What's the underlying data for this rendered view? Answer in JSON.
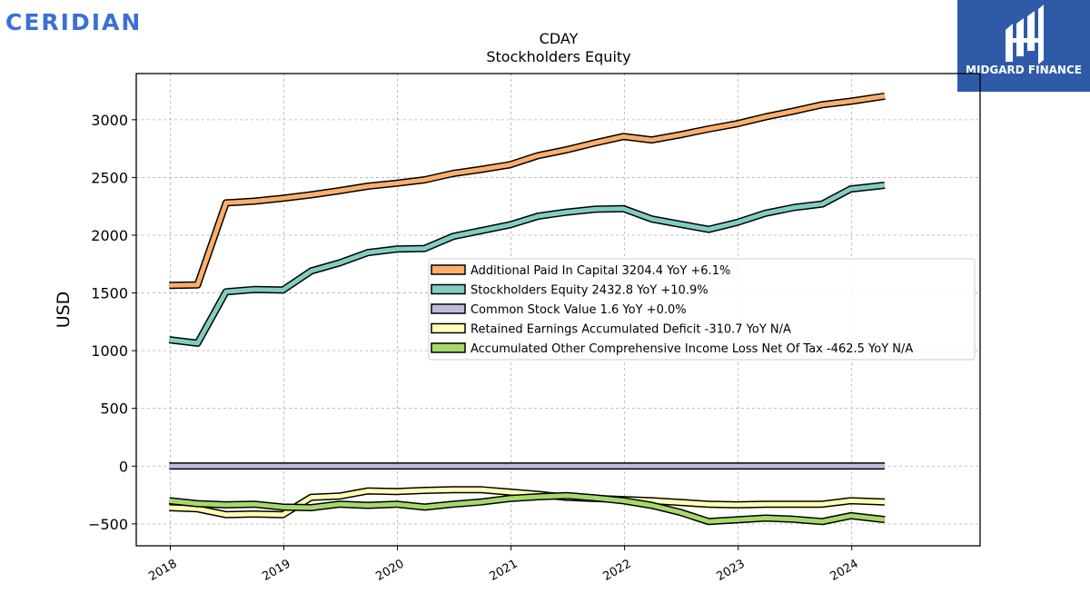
{
  "branding": {
    "left_logo_text": "CERIDIAN",
    "left_logo_color": "#3a6fd8",
    "right_logo_text": "MIDGARD FINANCE",
    "right_logo_bg": "#2f5aa8"
  },
  "chart_data": {
    "type": "line",
    "title": "CDAY",
    "subtitle": "Stockholders  Equity",
    "ylabel": "USD",
    "xlabel": "",
    "ylim": [
      -690,
      3400
    ],
    "yticks": [
      -500,
      0,
      500,
      1000,
      1500,
      2000,
      2500,
      3000
    ],
    "ytick_labels": [
      "−500",
      "0",
      "500",
      "1000",
      "1500",
      "2000",
      "2500",
      "3000"
    ],
    "xlim": [
      2017.7,
      2025.13
    ],
    "xticks": [
      2018,
      2019,
      2020,
      2021,
      2022,
      2023,
      2024
    ],
    "xtick_labels": [
      "2018",
      "2019",
      "2020",
      "2021",
      "2022",
      "2023",
      "2024"
    ],
    "grid": true,
    "legend_position": "center-right",
    "x": [
      2017.99,
      2018.24,
      2018.49,
      2018.74,
      2018.99,
      2019.24,
      2019.49,
      2019.74,
      2019.99,
      2020.24,
      2020.49,
      2020.74,
      2020.99,
      2021.24,
      2021.49,
      2021.74,
      2021.99,
      2022.24,
      2022.49,
      2022.74,
      2022.99,
      2023.24,
      2023.49,
      2023.74,
      2023.99,
      2024.29
    ],
    "series": [
      {
        "name": "Additional Paid In Capital  3204.4 YoY +6.1%",
        "color": "#fdae6b",
        "values": [
          1565,
          1570,
          2280,
          2295,
          2320,
          2350,
          2385,
          2425,
          2450,
          2480,
          2535,
          2570,
          2610,
          2690,
          2740,
          2800,
          2855,
          2825,
          2870,
          2920,
          2965,
          3025,
          3075,
          3130,
          3160,
          3204.4
        ]
      },
      {
        "name": "Stockholders Equity  2432.8 YoY +10.9%",
        "color": "#80cdc1",
        "values": [
          1095,
          1065,
          1510,
          1530,
          1525,
          1690,
          1760,
          1850,
          1880,
          1885,
          1990,
          2040,
          2090,
          2165,
          2200,
          2225,
          2230,
          2140,
          2095,
          2050,
          2110,
          2190,
          2240,
          2270,
          2400,
          2432.8
        ]
      },
      {
        "name": "Common Stock Value  1.6 YoY +0.0%",
        "color": "#bcbddc",
        "values": [
          1.5,
          1.5,
          1.5,
          1.5,
          1.5,
          1.5,
          1.5,
          1.5,
          1.5,
          1.5,
          1.5,
          1.5,
          1.5,
          1.5,
          1.5,
          1.5,
          1.6,
          1.6,
          1.6,
          1.6,
          1.6,
          1.6,
          1.6,
          1.6,
          1.6,
          1.6
        ]
      },
      {
        "name": "Retained Earnings Accumulated Deficit  -310.7 YoY N/A",
        "color": "#ffffb3",
        "values": [
          -360,
          -370,
          -420,
          -415,
          -420,
          -270,
          -260,
          -215,
          -220,
          -210,
          -205,
          -205,
          -225,
          -245,
          -270,
          -280,
          -290,
          -300,
          -315,
          -330,
          -335,
          -330,
          -330,
          -330,
          -300,
          -310.7
        ]
      },
      {
        "name": "Accumulated Other Comprehensive Income Loss Net Of Tax  -462.5 YoY N/A",
        "color": "#a6d96a",
        "values": [
          -300,
          -325,
          -335,
          -330,
          -355,
          -360,
          -330,
          -340,
          -330,
          -355,
          -330,
          -310,
          -280,
          -265,
          -255,
          -275,
          -300,
          -340,
          -400,
          -480,
          -465,
          -450,
          -460,
          -480,
          -430,
          -462.5
        ]
      }
    ]
  }
}
